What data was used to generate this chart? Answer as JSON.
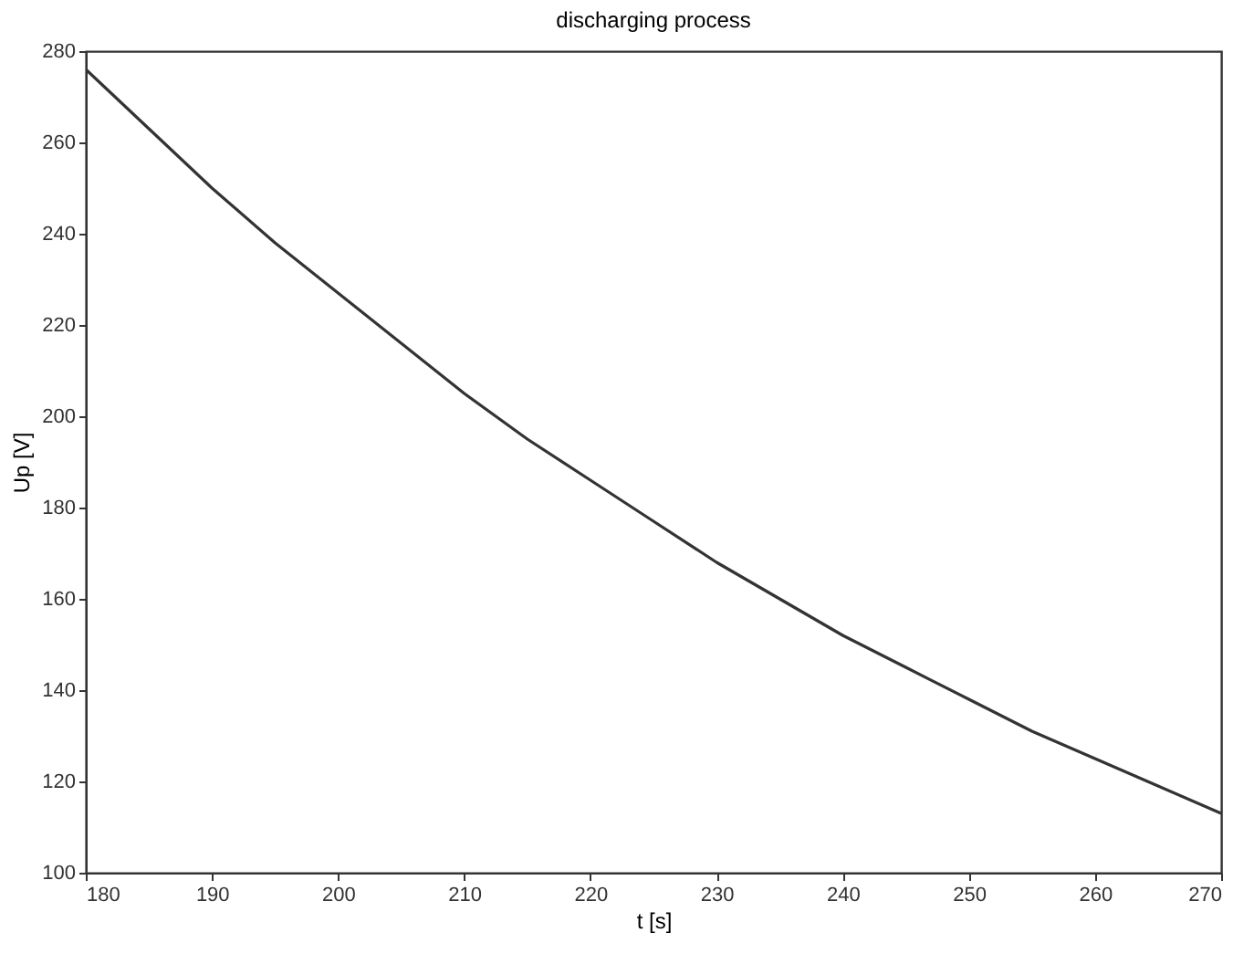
{
  "chart_data": {
    "type": "line",
    "title": "discharging process",
    "xlabel": "t [s]",
    "ylabel": "Up [V]",
    "x": [
      180,
      185,
      190,
      195,
      200,
      205,
      210,
      215,
      220,
      225,
      230,
      235,
      240,
      245,
      250,
      255,
      260,
      265,
      270
    ],
    "series": [
      {
        "color": "#333333",
        "values": [
          276,
          263,
          250,
          238,
          227,
          216,
          205,
          195,
          186,
          177,
          168,
          160,
          152,
          145,
          138,
          131,
          125,
          119,
          113
        ]
      }
    ],
    "xlim": [
      180,
      270
    ],
    "xticks": [
      180,
      190,
      200,
      210,
      220,
      230,
      240,
      250,
      260,
      270
    ],
    "ylim": [
      100,
      280
    ],
    "yticks": [
      100,
      120,
      140,
      160,
      180,
      200,
      220,
      240,
      260,
      280
    ],
    "grid": false,
    "legend": false,
    "marker": "none",
    "line_style": "solid"
  }
}
